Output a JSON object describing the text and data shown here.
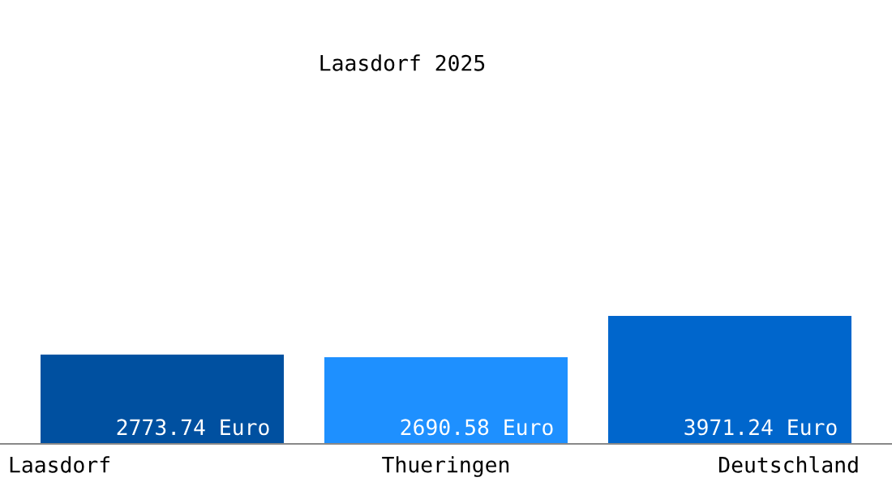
{
  "chart_data": {
    "type": "bar",
    "title": "Laasdorf 2025",
    "categories": [
      "Laasdorf",
      "Thueringen",
      "Deutschland"
    ],
    "values": [
      2773.74,
      2690.58,
      3971.24
    ],
    "colors": [
      "#0050a0",
      "#1e90ff",
      "#0066cc"
    ],
    "value_labels": [
      "2773.74 Euro",
      "2690.58 Euro",
      "3971.24 Euro"
    ],
    "legend": false
  }
}
